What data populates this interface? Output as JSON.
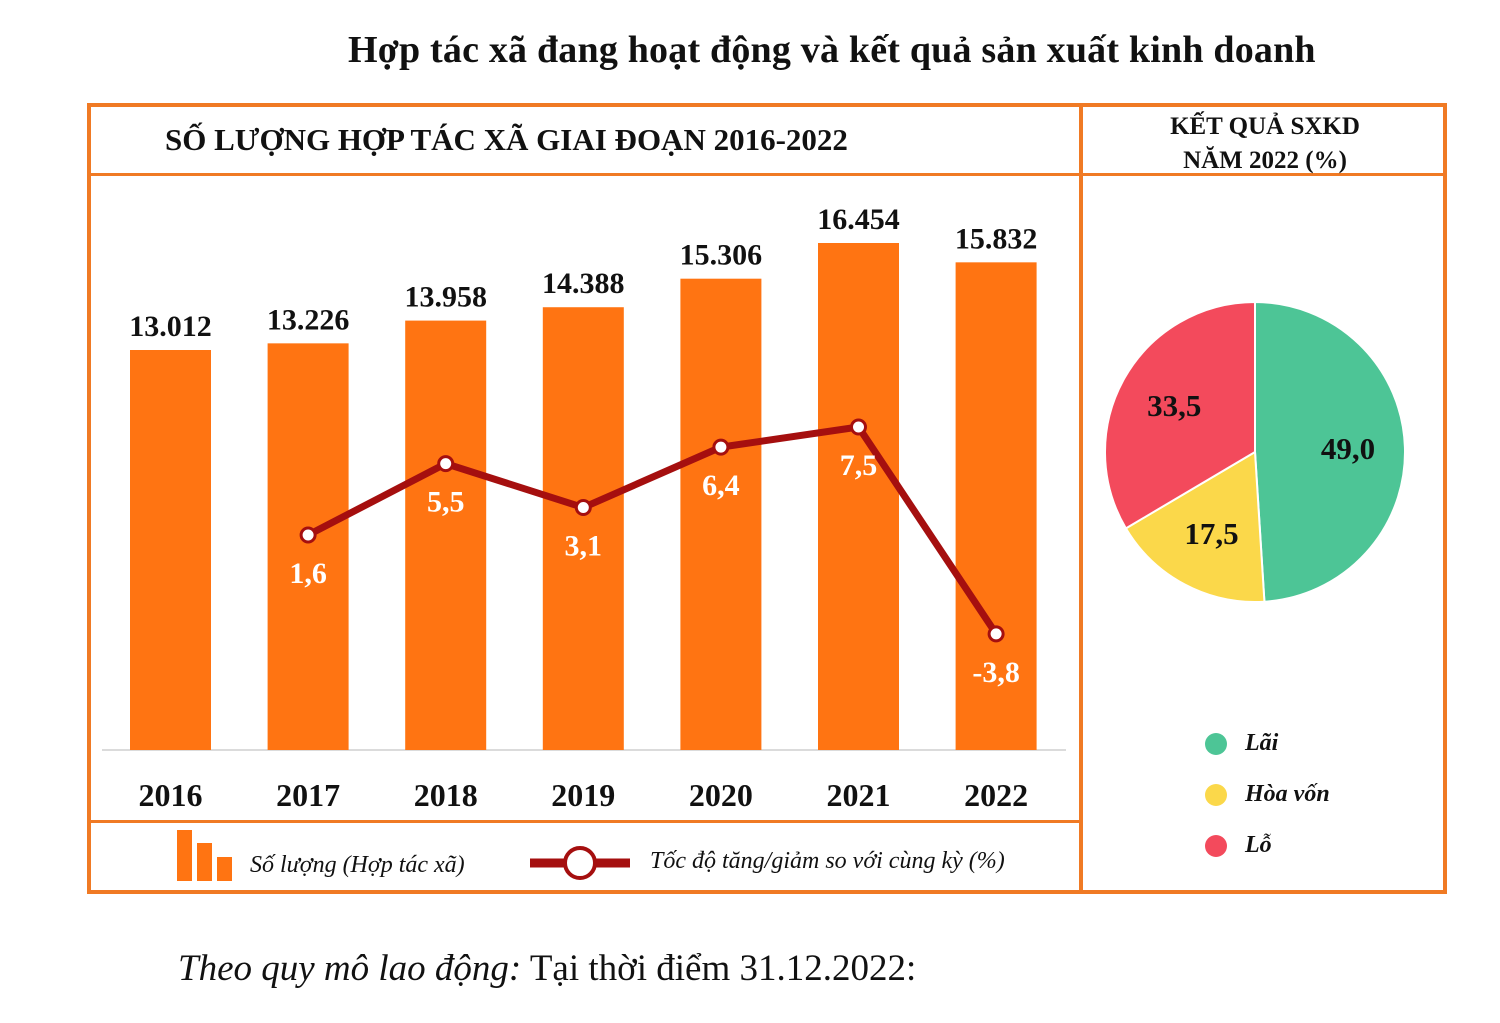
{
  "main_title": "Hợp tác xã đang hoạt động và kết quả sản xuất kinh doanh",
  "chart_data": [
    {
      "type": "bar",
      "title": "SỐ LƯỢNG HỢP TÁC XÃ GIAI ĐOẠN 2016-2022",
      "categories": [
        "2016",
        "2017",
        "2018",
        "2019",
        "2020",
        "2021",
        "2022"
      ],
      "series": [
        {
          "name": "Số lượng (Hợp tác xã)",
          "type": "bar",
          "values": [
            13012,
            13226,
            13958,
            14388,
            15306,
            16454,
            15832
          ],
          "labels": [
            "13.012",
            "13.226",
            "13.958",
            "14.388",
            "15.306",
            "16.454",
            "15.832"
          ],
          "color": "#ff7412"
        },
        {
          "name": "Tốc độ tăng/giảm so với cùng kỳ (%)",
          "type": "line",
          "values": [
            null,
            1.6,
            5.5,
            3.1,
            6.4,
            7.5,
            -3.8
          ],
          "labels": [
            "",
            "1,6",
            "5,5",
            "3,1",
            "6,4",
            "7,5",
            "-3,8"
          ],
          "color": "#a50f0f"
        }
      ],
      "grid": false,
      "legend": "bottom"
    },
    {
      "type": "pie",
      "title": [
        "KẾT QUẢ SXKD",
        "NĂM 2022 (%)"
      ],
      "slices": [
        {
          "name": "Lãi",
          "value": 49.0,
          "label": "49,0",
          "color": "#4dc596"
        },
        {
          "name": "Hòa vốn",
          "value": 17.5,
          "label": "17,5",
          "color": "#fbd84a"
        },
        {
          "name": "Lỗ",
          "value": 33.5,
          "label": "33,5",
          "color": "#f34a5c"
        }
      ],
      "legend": "bottom"
    }
  ],
  "footer": {
    "italic": "Theo quy mô lao động:",
    "normal": " Tại thời điểm 31.12.2022:"
  }
}
